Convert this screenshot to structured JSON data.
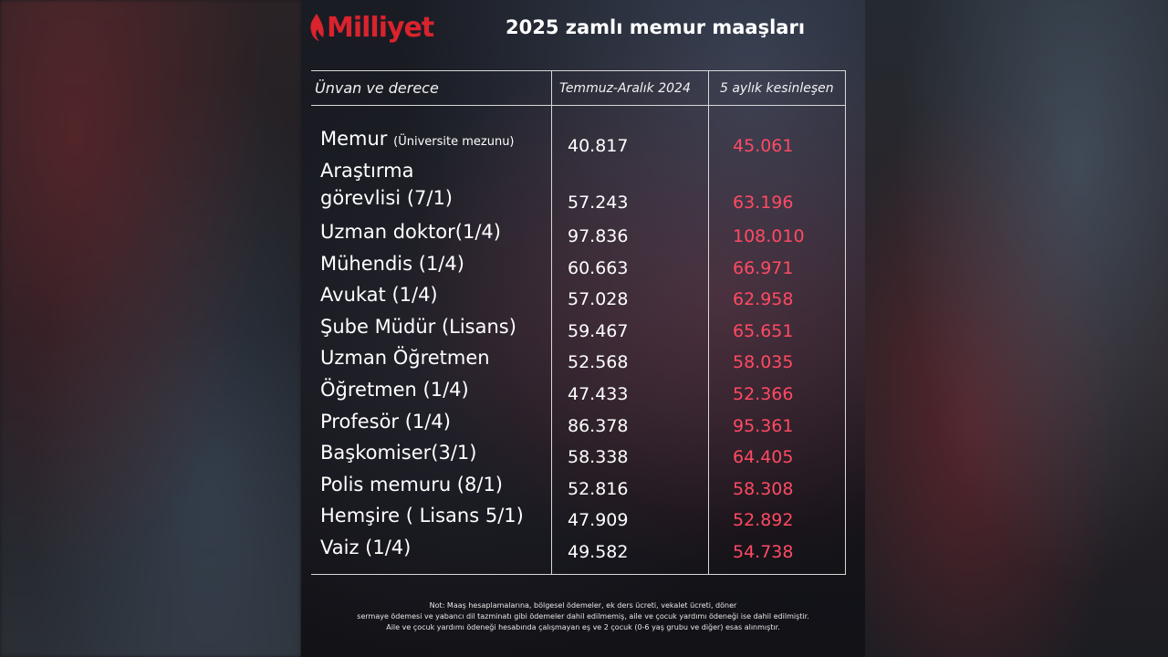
{
  "brand": {
    "name": "Milliyet",
    "color": "#d9232d"
  },
  "title": "2025 zamlı memur maaşları",
  "table": {
    "headers": [
      "Ünvan ve derece",
      "Temmuz-Aralık 2024",
      "5 aylık kesinleşen"
    ],
    "rows": [
      {
        "title": "Memur",
        "sub": "(Üniversite mezunu)",
        "v1": "40.817",
        "v2": "45.061"
      },
      {
        "title": "Araştırma",
        "title2": "görevlisi (7/1)",
        "v1": "57.243",
        "v2": "63.196"
      },
      {
        "title": "Uzman doktor(1/4)",
        "v1": "97.836",
        "v2": "108.010"
      },
      {
        "title": "Mühendis (1/4)",
        "v1": "60.663",
        "v2": "66.971"
      },
      {
        "title": "Avukat (1/4)",
        "v1": "57.028",
        "v2": "62.958"
      },
      {
        "title": "Şube Müdür (Lisans)",
        "v1": "59.467",
        "v2": "65.651"
      },
      {
        "title": "Uzman Öğretmen",
        "v1": "52.568",
        "v2": "58.035"
      },
      {
        "title": "Öğretmen (1/4)",
        "v1": "47.433",
        "v2": "52.366"
      },
      {
        "title": "Profesör (1/4)",
        "v1": "86.378",
        "v2": "95.361"
      },
      {
        "title": "Başkomiser(3/1)",
        "v1": "58.338",
        "v2": "64.405"
      },
      {
        "title": "Polis memuru (8/1)",
        "v1": "52.816",
        "v2": "58.308"
      },
      {
        "title": "Hemşire ( Lisans 5/1)",
        "v1": "47.909",
        "v2": "52.892"
      },
      {
        "title": "Vaiz (1/4)",
        "v1": "49.582",
        "v2": "54.738"
      }
    ]
  },
  "note": [
    "Not: Maaş hesaplamalarına, bölgesel ödemeler, ek ders ücreti, vekalet ücreti, döner",
    "sermaye ödemesi ve yabancı dil tazminatı gibi ödemeler dahil edilmemiş, aile ve çocuk yardımı ödeneği ise dahil edilmiştir.",
    "Aile ve çocuk yardımı ödeneği hesabında çalışmayan eş ve 2 çocuk (0-6 yaş grubu ve diğer) esas alınmıştır."
  ],
  "colors": {
    "value_new": "#ff4a64",
    "value_old": "#ffffff",
    "text": "#ffffff"
  }
}
